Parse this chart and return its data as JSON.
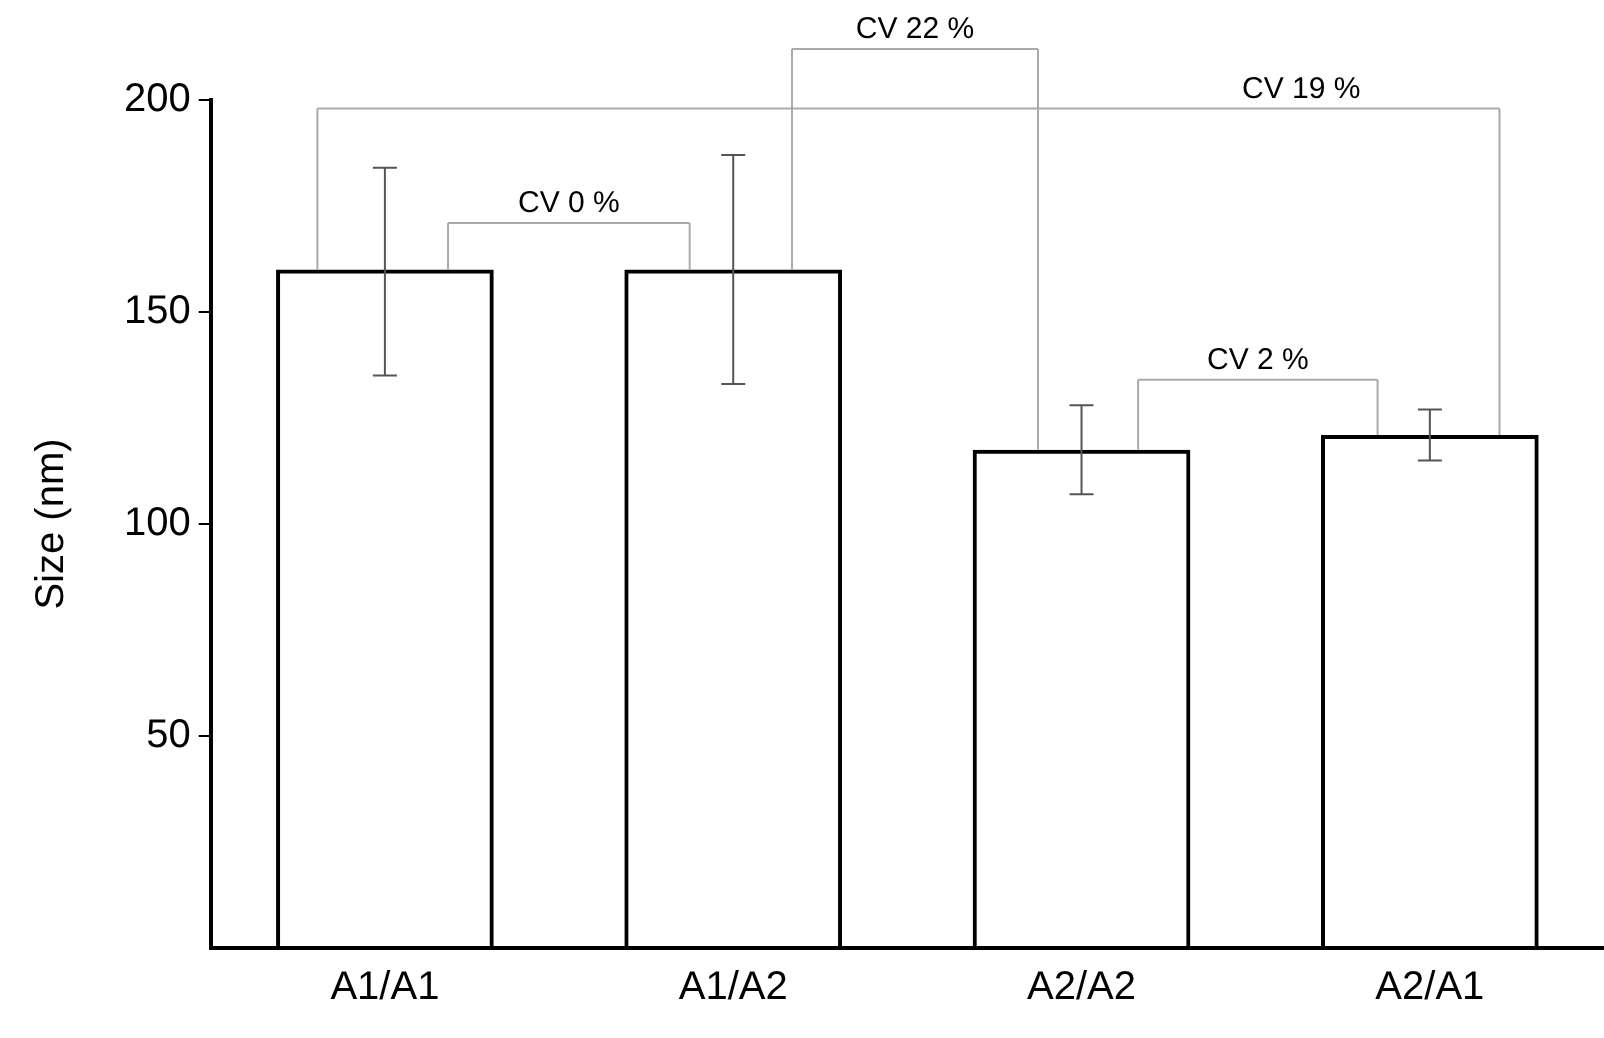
{
  "chart_data": {
    "type": "bar",
    "ylabel": "Size (nm)",
    "categories": [
      "A1/A1",
      "A1/A2",
      "A2/A2",
      "A2/A1"
    ],
    "values": [
      160,
      160,
      117.5,
      121
    ],
    "errors": [
      [
        135,
        184
      ],
      [
        133,
        187
      ],
      [
        107,
        128
      ],
      [
        115,
        127
      ]
    ],
    "color": "#000000",
    "ylim": [
      0,
      200
    ],
    "yticks": [
      50,
      100,
      150,
      200
    ],
    "annotations": [
      "CV 0 %",
      "CV 22 %",
      "CV 19 %",
      "CV 2 %"
    ],
    "grid": false,
    "legend": false
  }
}
